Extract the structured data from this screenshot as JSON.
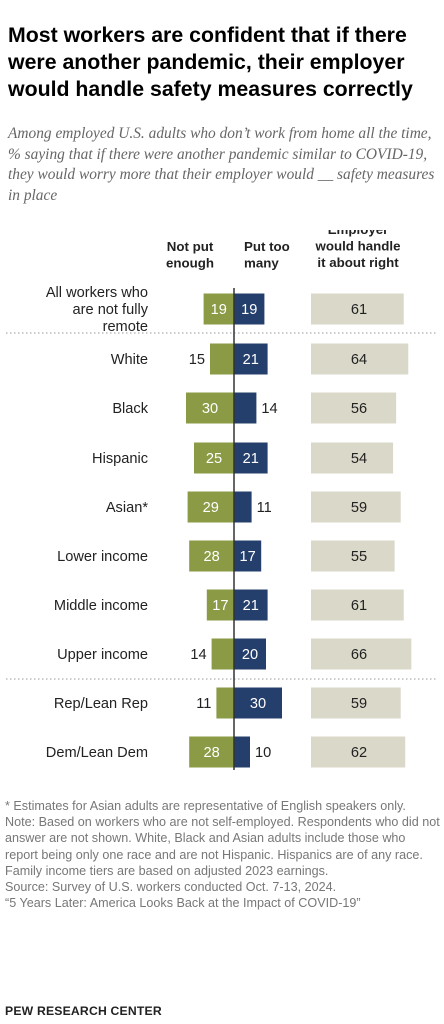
{
  "title": "Most workers are confident that if there were another pandemic, their employer would handle safety measures correctly",
  "subtitle": "Among employed U.S. adults who don’t work from home all the time, % saying that if there were another pandemic similar to COVID-19, they would worry more that their employer would __ safety measures in place",
  "colors": {
    "not_enough": "#8a9a45",
    "too_many": "#243f6b",
    "about_right": "#dad8c8",
    "divider": "#999999"
  },
  "chart_data": {
    "type": "bar",
    "orientation": "horizontal",
    "layout": "diverging with separate column",
    "categories": [
      [
        "All workers who",
        "are not fully",
        "remote"
      ],
      [
        "White"
      ],
      [
        "Black"
      ],
      [
        "Hispanic"
      ],
      [
        "Asian*"
      ],
      [
        "Lower income"
      ],
      [
        "Middle income"
      ],
      [
        "Upper income"
      ],
      [
        "Rep/Lean Rep"
      ],
      [
        "Dem/Lean Dem"
      ]
    ],
    "series": [
      {
        "name": [
          "Not put",
          "enough"
        ],
        "values": [
          19,
          15,
          30,
          25,
          29,
          28,
          17,
          14,
          11,
          28
        ]
      },
      {
        "name": [
          "Put too",
          "many"
        ],
        "values": [
          19,
          21,
          14,
          21,
          11,
          17,
          21,
          20,
          30,
          10
        ]
      },
      {
        "name": [
          "Employer",
          "would handle",
          "it about right"
        ],
        "values": [
          61,
          64,
          56,
          54,
          59,
          55,
          61,
          66,
          59,
          62
        ]
      }
    ]
  },
  "notes": [
    "* Estimates for Asian adults are representative of English speakers only.",
    "Note: Based on workers who are not self-employed. Respondents who did not answer are not shown. White, Black and Asian adults include those who report being only one race and are not Hispanic. Hispanics are of any race. Family income tiers are based on adjusted 2023 earnings."
  ],
  "source": [
    "Source: Survey of U.S. workers conducted Oct. 7-13, 2024.",
    "“5 Years Later: America Looks Back at the Impact of COVID-19”"
  ],
  "brand": "PEW RESEARCH CENTER"
}
